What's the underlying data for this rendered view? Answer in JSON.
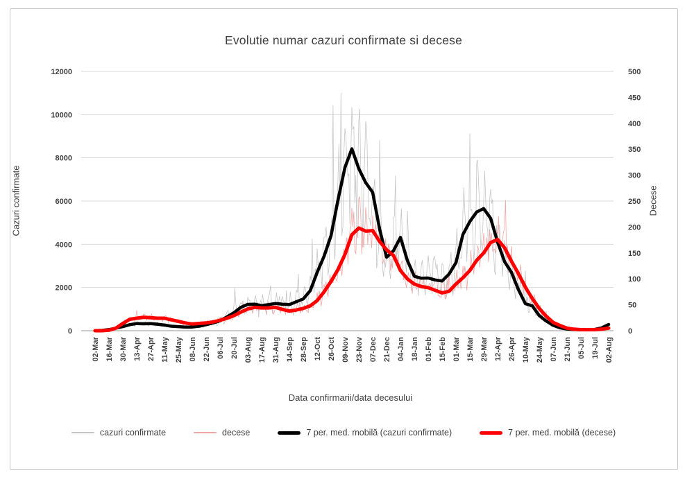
{
  "chart_data": {
    "type": "line",
    "title": "Evolutie numar cazuri confirmate si decese",
    "x_axis": {
      "title": "Data confirmarii/data decesului",
      "tick_labels": [
        "02-Mar",
        "16-Mar",
        "30-Mar",
        "13-Apr",
        "27-Apr",
        "11-May",
        "25-May",
        "08-Jun",
        "22-Jun",
        "06-Jul",
        "20-Jul",
        "03-Aug",
        "17-Aug",
        "31-Aug",
        "14-Sep",
        "28-Sep",
        "12-Oct",
        "26-Oct",
        "09-Nov",
        "23-Nov",
        "07-Dec",
        "21-Dec",
        "04-Jan",
        "18-Jan",
        "01-Feb",
        "15-Feb",
        "01-Mar",
        "15-Mar",
        "29-Mar",
        "12-Apr",
        "26-Apr",
        "10-May",
        "24-May",
        "07-Jun",
        "21-Jun",
        "05-Jul",
        "19-Jul",
        "02-Aug"
      ]
    },
    "y_axis_left": {
      "title": "Cazuri confirmate",
      "min": 0,
      "max": 12000,
      "tick_step": 2000,
      "ticks": [
        "0",
        "2000",
        "4000",
        "6000",
        "8000",
        "10000",
        "12000"
      ]
    },
    "y_axis_right": {
      "title": "Decese",
      "min": 0,
      "max": 500,
      "tick_step": 50,
      "ticks": [
        "0",
        "50",
        "100",
        "150",
        "200",
        "250",
        "300",
        "350",
        "400",
        "450",
        "500"
      ]
    },
    "grid": {
      "horizontal": true,
      "vertical": false,
      "gridline_color": "#d9d9d9",
      "axis_line_color": "#ababab"
    },
    "series": [
      {
        "name": "7 per. med. mobilă (cazuri confirmate)",
        "axis": "left",
        "color": "#000000",
        "width": 4.5,
        "style": "moving-average",
        "weekly_values": [
          3,
          15,
          50,
          120,
          190,
          280,
          330,
          320,
          330,
          300,
          260,
          210,
          190,
          170,
          170,
          210,
          280,
          360,
          460,
          640,
          830,
          1080,
          1220,
          1230,
          1160,
          1210,
          1260,
          1230,
          1210,
          1340,
          1470,
          1850,
          2700,
          3450,
          4400,
          6050,
          7550,
          8420,
          7500,
          6850,
          6400,
          4700,
          3400,
          3700,
          4320,
          3250,
          2520,
          2430,
          2440,
          2350,
          2300,
          2620,
          3150,
          4450,
          5050,
          5500,
          5650,
          5200,
          4100,
          3200,
          2700,
          1900,
          1250,
          1150,
          700,
          450,
          250,
          130,
          80,
          55,
          45,
          45,
          60,
          130,
          290
        ]
      },
      {
        "name": "7 per. med. mobilă (decese)",
        "axis": "right",
        "color": "#fe0000",
        "width": 5,
        "style": "moving-average",
        "weekly_values": [
          0,
          0,
          1,
          5,
          14,
          22,
          24,
          26,
          25,
          24,
          24,
          21,
          18,
          15,
          13,
          14,
          15,
          17,
          20,
          24,
          29,
          36,
          42,
          45,
          44,
          44,
          45,
          41,
          38,
          40,
          43,
          48,
          58,
          75,
          95,
          118,
          147,
          185,
          198,
          192,
          193,
          172,
          156,
          145,
          116,
          100,
          90,
          85,
          83,
          78,
          73,
          76,
          90,
          102,
          116,
          136,
          150,
          170,
          176,
          160,
          134,
          110,
          84,
          62,
          43,
          28,
          16,
          10,
          5,
          3,
          2,
          2,
          2,
          3,
          5
        ]
      },
      {
        "name": "cazuri confirmate",
        "axis": "left",
        "color": "#c6c6c6",
        "width": 0.8,
        "style": "daily-noisy",
        "derived_from_series": 0,
        "noise": {
          "weekly_amp": 0.26,
          "random_amp": 0.44,
          "spike_prob": 0.05,
          "spike_gain": 0.35,
          "seed": 20200302
        }
      },
      {
        "name": "decese",
        "axis": "right",
        "color": "#f2a6a6",
        "width": 0.8,
        "style": "daily-noisy",
        "derived_from_series": 1,
        "noise": {
          "weekly_amp": 0.12,
          "random_amp": 0.4,
          "spike_prob": 0.03,
          "spike_gain": 0.2,
          "seed": 20200322
        }
      }
    ],
    "legend": [
      {
        "label": "cazuri confirmate",
        "color": "#c6c6c6",
        "thickness": 1.5
      },
      {
        "label": "decese",
        "color": "#f2a6a6",
        "thickness": 1.5
      },
      {
        "label": "7 per. med. mobilă (cazuri confirmate)",
        "color": "#000000",
        "thickness": 5
      },
      {
        "label": "7 per. med. mobilă (decese)",
        "color": "#fe0000",
        "thickness": 5
      }
    ],
    "legend_position": "bottom",
    "daily_peak_confirmed": 11400,
    "ma_peak_confirmed": 8420,
    "ma_peak_deaths": 198
  }
}
